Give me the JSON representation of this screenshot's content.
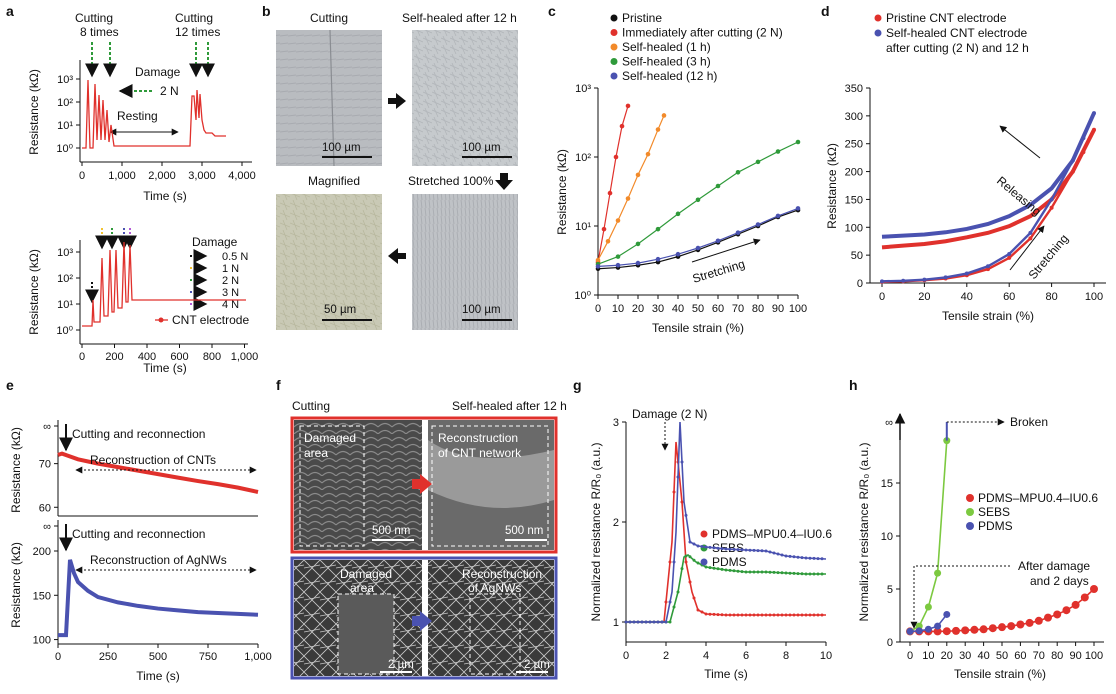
{
  "panels": {
    "a": "a",
    "b": "b",
    "c": "c",
    "d": "d",
    "e": "e",
    "f": "f",
    "g": "g",
    "h": "h"
  },
  "colors": {
    "red": "#e0312c",
    "orange": "#f28a2a",
    "green": "#2f9a3a",
    "blue": "#4a52b0",
    "lightgreen": "#7cc940",
    "black": "#111111",
    "purple": "#b25ad6",
    "yellow": "#f2c230"
  },
  "a_top": {
    "annot_cut8": [
      "Cutting",
      "8 times"
    ],
    "annot_cut12": [
      "Cutting",
      "12 times"
    ],
    "damage": "Damage",
    "damage_force": "2 N",
    "resting": "Resting",
    "ylabel": "Resistance (kΩ)",
    "xlabel": "Time (s)",
    "xticks": [
      "0",
      "1,000",
      "2,000",
      "3,000",
      "4,000"
    ],
    "yticks": [
      "10⁰",
      "10¹",
      "10²",
      "10³"
    ]
  },
  "a_bottom": {
    "damage_title": "Damage",
    "legend": [
      "0.5 N",
      "1 N",
      "2 N",
      "3 N",
      "4 N"
    ],
    "series": "CNT electrode",
    "ylabel": "Resistance (kΩ)",
    "xlabel": "Time (s)",
    "xticks": [
      "0",
      "200",
      "400",
      "600",
      "800",
      "1,000"
    ],
    "yticks": [
      "10⁰",
      "10¹",
      "10²",
      "10³"
    ]
  },
  "b": {
    "cutting": "Cutting",
    "healed": "Self-healed after 12 h",
    "magnified": "Magnified",
    "stretched": "Stretched 100%",
    "scale1": "100 µm",
    "scale2": "100 µm",
    "scale3": "50 µm",
    "scale4": "100 µm"
  },
  "f": {
    "cutting": "Cutting",
    "healed": "Self-healed after 12 h",
    "damaged": [
      "Damaged",
      "area"
    ],
    "recon_cnt": [
      "Reconstruction",
      "of CNT network"
    ],
    "recon_ag": [
      "Reconstruction",
      "of AgNWs"
    ],
    "scale_nm1": "500 nm",
    "scale_nm2": "500 nm",
    "scale_um1": "2 µm",
    "scale_um2": "2 µm"
  },
  "chart_data": [
    {
      "panel": "c",
      "type": "scatter",
      "xlabel": "Tensile strain (%)",
      "ylabel": "Resistance (kΩ)",
      "yscale": "log",
      "xlim": [
        0,
        100
      ],
      "ylim": [
        1,
        1000
      ],
      "xticks": [
        "0",
        "10",
        "20",
        "30",
        "40",
        "50",
        "60",
        "70",
        "80",
        "90",
        "100"
      ],
      "yticks": [
        "10⁰",
        "10¹",
        "10²",
        "10³"
      ],
      "annotation": "Stretching",
      "legend_position": "top-left",
      "series": [
        {
          "name": "Pristine",
          "color": "#111111",
          "x": [
            0,
            10,
            20,
            30,
            40,
            50,
            60,
            70,
            80,
            90,
            100
          ],
          "y": [
            2.4,
            2.5,
            2.7,
            3.0,
            3.6,
            4.5,
            5.8,
            7.6,
            10,
            13.5,
            17
          ]
        },
        {
          "name": "Immediately after cutting (2 N)",
          "color": "#e0312c",
          "x": [
            0,
            3,
            6,
            9,
            12,
            15
          ],
          "y": [
            3,
            9,
            30,
            100,
            280,
            550
          ]
        },
        {
          "name": "Self-healed (1 h)",
          "color": "#f28a2a",
          "x": [
            0,
            5,
            10,
            15,
            20,
            25,
            30,
            33
          ],
          "y": [
            3.2,
            6,
            12,
            25,
            55,
            110,
            250,
            400
          ]
        },
        {
          "name": "Self-healed (3 h)",
          "color": "#2f9a3a",
          "x": [
            0,
            10,
            20,
            30,
            40,
            50,
            60,
            70,
            80,
            90,
            100
          ],
          "y": [
            2.8,
            3.6,
            5.5,
            9,
            15,
            24,
            38,
            60,
            85,
            120,
            165
          ]
        },
        {
          "name": "Self-healed (12 h)",
          "color": "#4a52b0",
          "x": [
            0,
            10,
            20,
            30,
            40,
            50,
            60,
            70,
            80,
            90,
            100
          ],
          "y": [
            2.6,
            2.7,
            2.9,
            3.3,
            3.9,
            4.8,
            6.1,
            8,
            10.5,
            14,
            18
          ]
        }
      ]
    },
    {
      "panel": "d",
      "type": "line",
      "xlabel": "Tensile strain (%)",
      "ylabel": "Resistance (kΩ)",
      "xlim": [
        0,
        100
      ],
      "ylim": [
        0,
        350
      ],
      "xticks": [
        "0",
        "20",
        "40",
        "60",
        "80",
        "100"
      ],
      "yticks": [
        "0",
        "50",
        "100",
        "150",
        "200",
        "250",
        "300",
        "350"
      ],
      "annotations": [
        "Releasing",
        "Stretching"
      ],
      "legend_position": "top-left",
      "series": [
        {
          "name": "Pristine CNT electrode",
          "color": "#e0312c",
          "stretch_x": [
            0,
            10,
            20,
            30,
            40,
            50,
            60,
            70,
            80,
            90,
            95,
            100
          ],
          "stretch_y": [
            2,
            3,
            5,
            8,
            14,
            25,
            45,
            80,
            135,
            200,
            235,
            275
          ],
          "release_x": [
            100,
            90,
            80,
            70,
            60,
            50,
            40,
            30,
            20,
            10,
            0
          ],
          "release_y": [
            275,
            200,
            150,
            120,
            102,
            90,
            82,
            75,
            70,
            67,
            64
          ]
        },
        {
          "name": "Self-healed CNT electrode after cutting (2 N) and 12 h",
          "color": "#4a52b0",
          "stretch_x": [
            0,
            10,
            20,
            30,
            40,
            50,
            60,
            70,
            80,
            90,
            95,
            100
          ],
          "stretch_y": [
            3,
            4,
            6,
            10,
            17,
            30,
            52,
            90,
            150,
            220,
            260,
            305
          ],
          "release_x": [
            100,
            90,
            80,
            70,
            60,
            50,
            40,
            30,
            20,
            10,
            0
          ],
          "release_y": [
            305,
            220,
            170,
            140,
            120,
            106,
            97,
            91,
            87,
            85,
            83
          ]
        }
      ]
    },
    {
      "panel": "e",
      "type": "line",
      "xlabel": "Time (s)",
      "ylabel": "Resistance (kΩ)",
      "xticks": [
        "0",
        "250",
        "500",
        "750",
        "1,000"
      ],
      "top": {
        "annotation": "Cutting and reconnection",
        "range_label": "Reconstruction of CNTs",
        "yticks": [
          "60",
          "70",
          "∞"
        ],
        "ylim": [
          58,
          80
        ],
        "color": "#e0312c",
        "x": [
          0,
          20,
          50,
          100,
          200,
          300,
          400,
          500,
          600,
          700,
          800,
          900,
          1000
        ],
        "y": [
          72,
          72.3,
          71.8,
          71,
          70,
          69.2,
          68.4,
          67.6,
          66.8,
          66,
          65.3,
          64.5,
          63.5
        ]
      },
      "bottom": {
        "annotation": "Cutting and reconnection",
        "range_label": "Reconstruction of AgNWs",
        "yticks": [
          "100",
          "150",
          "200",
          "∞"
        ],
        "ylim": [
          95,
          235
        ],
        "color": "#4a52b0",
        "x": [
          0,
          40,
          60,
          80,
          100,
          150,
          200,
          300,
          400,
          500,
          600,
          700,
          800,
          900,
          1000
        ],
        "y": [
          105,
          105,
          190,
          175,
          165,
          155,
          148,
          142,
          138,
          135,
          133,
          131,
          130,
          129,
          128
        ]
      }
    },
    {
      "panel": "g",
      "type": "line",
      "xlabel": "Time (s)",
      "ylabel": "Normalized resistance R/R₀ (a.u.)",
      "xlim": [
        0,
        10
      ],
      "ylim": [
        0.8,
        3
      ],
      "xticks": [
        "0",
        "2",
        "4",
        "6",
        "8",
        "10"
      ],
      "yticks": [
        "1",
        "2",
        "3"
      ],
      "annotation": "Damage (2 N)",
      "legend_position": "center-right",
      "series": [
        {
          "name": "PDMS–MPU0.4–IU0.6",
          "color": "#e0312c",
          "x": [
            0,
            1.9,
            2.3,
            2.5,
            2.8,
            3,
            3.3,
            3.6,
            4,
            5,
            10
          ],
          "y": [
            1,
            1,
            1.8,
            2.8,
            2.2,
            1.6,
            1.3,
            1.12,
            1.08,
            1.07,
            1.07
          ]
        },
        {
          "name": "SEBS",
          "color": "#2f9a3a",
          "x": [
            0,
            2.2,
            2.6,
            2.9,
            3.1,
            3.5,
            4,
            5,
            6,
            7,
            8,
            9,
            10
          ],
          "y": [
            1,
            1,
            1.3,
            1.65,
            1.67,
            1.6,
            1.55,
            1.52,
            1.5,
            1.5,
            1.49,
            1.48,
            1.48
          ]
        },
        {
          "name": "PDMS",
          "color": "#4a52b0",
          "x": [
            0,
            2,
            2.3,
            2.5,
            2.7,
            2.9,
            3.2,
            3.6,
            4,
            5,
            6,
            7,
            8,
            9,
            10
          ],
          "y": [
            1,
            1,
            1.3,
            1.9,
            3,
            2.2,
            1.8,
            1.76,
            1.75,
            1.73,
            1.72,
            1.71,
            1.66,
            1.64,
            1.63
          ]
        }
      ]
    },
    {
      "panel": "h",
      "type": "scatter",
      "xlabel": "Tensile strain (%)",
      "ylabel": "Normalized resistance R/R₀ (a.u.)",
      "xlim": [
        0,
        100
      ],
      "ylim": [
        0,
        20
      ],
      "xticks": [
        "0",
        "10",
        "20",
        "30",
        "40",
        "50",
        "60",
        "70",
        "80",
        "90",
        "100"
      ],
      "yticks": [
        "0",
        "5",
        "10",
        "15",
        "∞"
      ],
      "annotations": [
        "Broken",
        "After damage",
        "and 2 days"
      ],
      "legend_position": "center-right",
      "series": [
        {
          "name": "PDMS–MPU0.4–IU0.6",
          "color": "#e0312c",
          "x": [
            0,
            5,
            10,
            15,
            20,
            25,
            30,
            35,
            40,
            45,
            50,
            55,
            60,
            65,
            70,
            75,
            80,
            85,
            90,
            95,
            100
          ],
          "y": [
            1,
            1,
            1,
            1,
            1.02,
            1.05,
            1.1,
            1.15,
            1.2,
            1.3,
            1.4,
            1.5,
            1.65,
            1.8,
            2,
            2.3,
            2.6,
            3,
            3.5,
            4.2,
            5
          ]
        },
        {
          "name": "SEBS",
          "color": "#7cc940",
          "x": [
            0,
            5,
            10,
            15,
            20
          ],
          "y": [
            1,
            1.5,
            3.3,
            6.5,
            19
          ]
        },
        {
          "name": "PDMS",
          "color": "#4a52b0",
          "x": [
            0,
            5,
            10,
            15,
            20
          ],
          "y": [
            1,
            1.05,
            1.2,
            1.5,
            2.6
          ]
        }
      ]
    }
  ]
}
